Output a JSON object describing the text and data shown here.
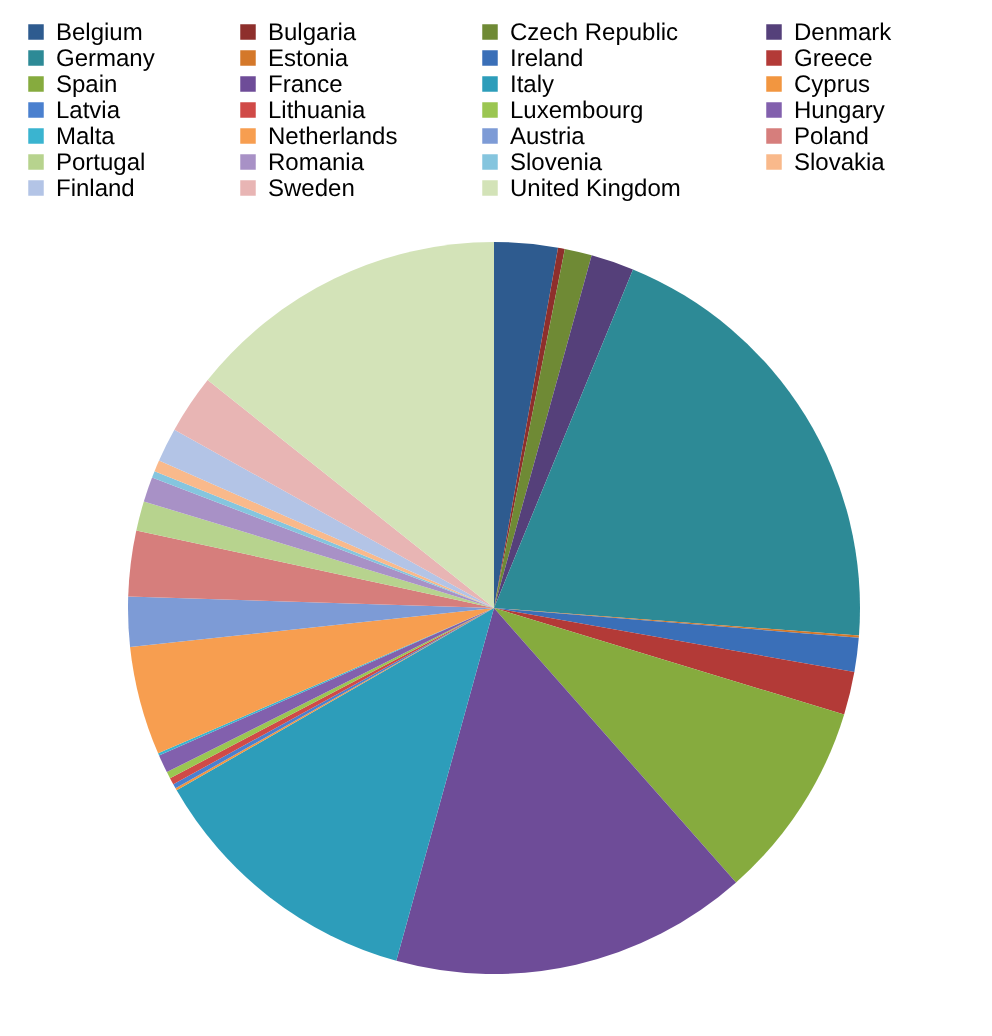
{
  "chart_data": {
    "type": "pie",
    "categories": [
      "Belgium",
      "Bulgaria",
      "Czech Republic",
      "Denmark",
      "Germany",
      "Estonia",
      "Ireland",
      "Greece",
      "Spain",
      "France",
      "Italy",
      "Cyprus",
      "Latvia",
      "Lithuania",
      "Luxembourg",
      "Hungary",
      "Malta",
      "Netherlands",
      "Austria",
      "Poland",
      "Portugal",
      "Romania",
      "Slovenia",
      "Slovakia",
      "Finland",
      "Sweden",
      "United Kingdom"
    ],
    "values": [
      2.8,
      0.3,
      1.2,
      1.9,
      20.0,
      0.1,
      1.5,
      1.9,
      8.8,
      15.8,
      12.4,
      0.1,
      0.2,
      0.3,
      0.3,
      0.8,
      0.1,
      4.8,
      2.2,
      2.9,
      1.3,
      1.1,
      0.3,
      0.5,
      1.5,
      2.6,
      14.3
    ],
    "colors": [
      "#2e5b8f",
      "#8e2f2c",
      "#6f8a35",
      "#55407a",
      "#2d8a96",
      "#d4782a",
      "#3a6fb8",
      "#b33a37",
      "#86ab3e",
      "#6e4c98",
      "#2d9dba",
      "#f29640",
      "#4a80cf",
      "#d04a47",
      "#9bc651",
      "#8260ad",
      "#3ab4d0",
      "#f79e50",
      "#7d9bd6",
      "#d67e7c",
      "#b7d38e",
      "#a891c6",
      "#85c5de",
      "#f9b98b",
      "#b3c4e6",
      "#e8b5b4",
      "#d3e3b8"
    ],
    "legend": "top"
  }
}
